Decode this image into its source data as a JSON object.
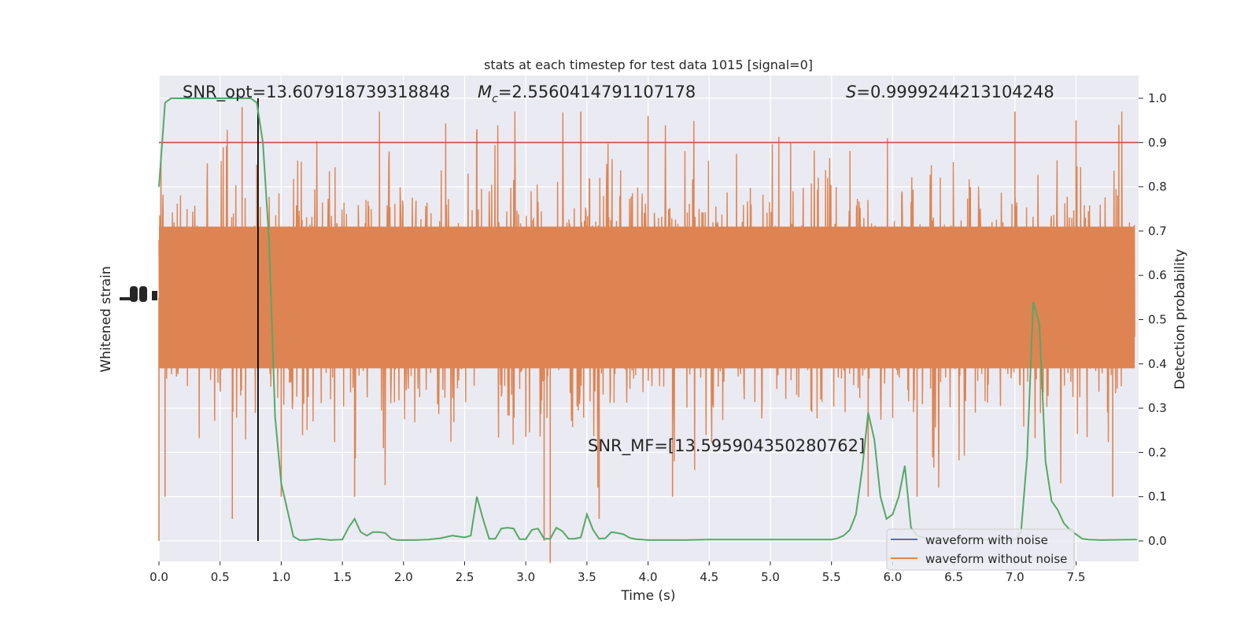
{
  "chart_data": {
    "type": "line",
    "title": "stats at each timestep for test data 1015 [signal=0]",
    "xlabel": "Time (s)",
    "ylabel_left": "Whitened strain",
    "ylabel_right": "Detection probability",
    "xlim": [
      0,
      8
    ],
    "ylim_right": [
      -0.05,
      1.05
    ],
    "x_ticks": [
      "0.0",
      "0.5",
      "1.0",
      "1.5",
      "2.0",
      "2.5",
      "3.0",
      "3.5",
      "4.0",
      "4.5",
      "5.0",
      "5.5",
      "6.0",
      "6.5",
      "7.0",
      "7.5"
    ],
    "y_ticks_right": [
      "0.0",
      "0.1",
      "0.2",
      "0.3",
      "0.4",
      "0.5",
      "0.6",
      "0.7",
      "0.8",
      "0.9",
      "1.0"
    ],
    "grid": true,
    "legend_position": "lower right",
    "annotations": {
      "snr_opt": "SNR_opt=13.607918739318848",
      "mc_symbol": "M",
      "mc_sub": "c",
      "mc_value": "=2.5560414791107178",
      "s_symbol": "S",
      "s_value": "=0.9999244213104248",
      "snr_mf": "SNR_MF=[13.595904350280762]"
    },
    "threshold": 0.9,
    "vline_time": 0.81,
    "series": [
      {
        "name": "waveform with noise",
        "color": "#4c72b0"
      },
      {
        "name": "waveform without noise",
        "color": "#dd8452"
      }
    ],
    "detection_probability": {
      "color": "#55a868",
      "times": [
        0.0,
        0.05,
        0.1,
        0.15,
        0.2,
        0.3,
        0.4,
        0.5,
        0.6,
        0.7,
        0.75,
        0.8,
        0.85,
        0.9,
        0.95,
        1.0,
        1.05,
        1.1,
        1.15,
        1.2,
        1.3,
        1.4,
        1.5,
        1.55,
        1.6,
        1.65,
        1.7,
        1.75,
        1.8,
        1.85,
        1.9,
        1.95,
        2.0,
        2.1,
        2.2,
        2.3,
        2.4,
        2.45,
        2.5,
        2.55,
        2.6,
        2.65,
        2.7,
        2.75,
        2.8,
        2.85,
        2.9,
        2.95,
        3.0,
        3.05,
        3.1,
        3.15,
        3.2,
        3.25,
        3.3,
        3.35,
        3.4,
        3.45,
        3.5,
        3.55,
        3.6,
        3.65,
        3.7,
        3.75,
        3.8,
        3.85,
        3.9,
        3.95,
        4.0,
        4.05,
        4.1,
        4.2,
        4.3,
        4.5,
        4.8,
        5.0,
        5.2,
        5.5,
        5.55,
        5.6,
        5.65,
        5.7,
        5.75,
        5.8,
        5.85,
        5.9,
        5.95,
        6.0,
        6.05,
        6.1,
        6.15,
        6.2,
        6.3,
        6.5,
        6.8,
        6.95,
        7.0,
        7.05,
        7.1,
        7.15,
        7.2,
        7.25,
        7.3,
        7.35,
        7.4,
        7.45,
        7.5,
        7.55,
        7.6,
        7.7,
        8.0
      ],
      "values": [
        0.8,
        0.99,
        1.0,
        1.0,
        1.0,
        1.0,
        1.0,
        1.0,
        1.0,
        1.0,
        1.0,
        0.99,
        0.9,
        0.68,
        0.28,
        0.13,
        0.07,
        0.01,
        0.002,
        0.002,
        0.005,
        0.002,
        0.003,
        0.03,
        0.05,
        0.02,
        0.012,
        0.02,
        0.02,
        0.018,
        0.005,
        0.002,
        0.002,
        0.002,
        0.003,
        0.006,
        0.012,
        0.01,
        0.008,
        0.012,
        0.1,
        0.05,
        0.005,
        0.005,
        0.028,
        0.03,
        0.028,
        0.004,
        0.004,
        0.025,
        0.028,
        0.005,
        0.005,
        0.03,
        0.022,
        0.005,
        0.005,
        0.008,
        0.06,
        0.025,
        0.005,
        0.006,
        0.02,
        0.018,
        0.015,
        0.007,
        0.004,
        0.003,
        0.002,
        0.002,
        0.002,
        0.002,
        0.002,
        0.003,
        0.003,
        0.003,
        0.003,
        0.003,
        0.006,
        0.012,
        0.025,
        0.06,
        0.16,
        0.29,
        0.23,
        0.1,
        0.05,
        0.06,
        0.1,
        0.17,
        0.03,
        0.012,
        0.004,
        0.003,
        0.003,
        0.003,
        0.003,
        0.02,
        0.19,
        0.54,
        0.49,
        0.18,
        0.09,
        0.07,
        0.04,
        0.025,
        0.015,
        0.005,
        0.003,
        0.002,
        0.003
      ]
    },
    "strain_noise": {
      "seed": 1015,
      "samples": 2400,
      "outliers": [
        [
          0.0,
          -0.3
        ],
        [
          0.05,
          -0.2
        ],
        [
          0.6,
          -0.25
        ],
        [
          0.68,
          0.98
        ],
        [
          0.8,
          0.85
        ],
        [
          1.0,
          -0.2
        ],
        [
          1.6,
          -0.2
        ],
        [
          2.6,
          0.93
        ],
        [
          3.15,
          -0.3
        ],
        [
          3.2,
          -0.35
        ],
        [
          3.45,
          0.97
        ],
        [
          3.6,
          -0.25
        ],
        [
          4.0,
          0.96
        ],
        [
          4.2,
          -0.2
        ],
        [
          5.8,
          -0.2
        ],
        [
          6.2,
          -0.2
        ],
        [
          7.0,
          0.97
        ],
        [
          7.5,
          0.95
        ],
        [
          7.8,
          -0.2
        ],
        [
          7.85,
          0.94
        ]
      ]
    }
  }
}
